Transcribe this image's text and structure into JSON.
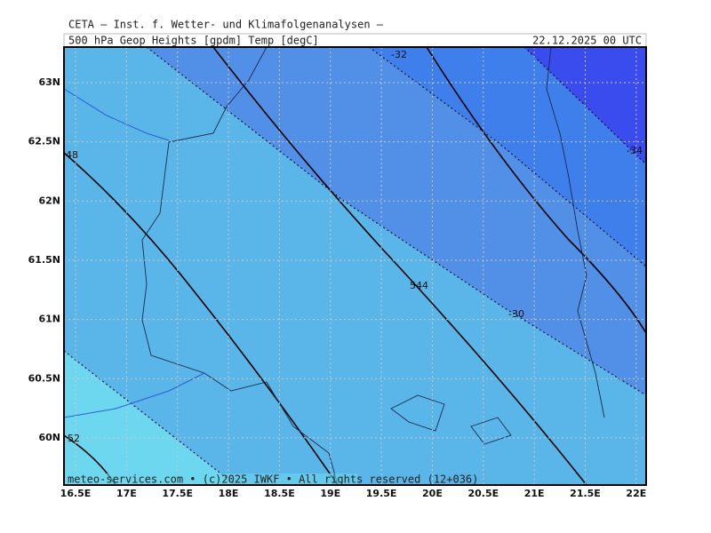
{
  "header": {
    "title": "CETA — Inst. f. Wetter- und Klimafolgenanalysen —",
    "subtitle": "500_hPa_Geop_Heights_[gpdm]_Temp_[degC]",
    "valid_time": "22.12.2025 00 UTC"
  },
  "map": {
    "lat_ticks": [
      {
        "value": 63,
        "label": "63N"
      },
      {
        "value": 62.5,
        "label": "62.5N"
      },
      {
        "value": 62,
        "label": "62N"
      },
      {
        "value": 61.5,
        "label": "61.5N"
      },
      {
        "value": 61,
        "label": "61N"
      },
      {
        "value": 60.5,
        "label": "60.5N"
      },
      {
        "value": 60,
        "label": "60N"
      }
    ],
    "lon_ticks": [
      {
        "value": 16.5,
        "label": "16.5E"
      },
      {
        "value": 17,
        "label": "17E"
      },
      {
        "value": 17.5,
        "label": "17.5E"
      },
      {
        "value": 18,
        "label": "18E"
      },
      {
        "value": 18.5,
        "label": "18.5E"
      },
      {
        "value": 19,
        "label": "19E"
      },
      {
        "value": 19.5,
        "label": "19.5E"
      },
      {
        "value": 20,
        "label": "20E"
      },
      {
        "value": 20.5,
        "label": "20.5E"
      },
      {
        "value": 21,
        "label": "21E"
      },
      {
        "value": 21.5,
        "label": "21.5E"
      },
      {
        "value": 22,
        "label": "22E"
      }
    ],
    "contour_labels": [
      "-32",
      "-34",
      "-30",
      "544",
      "48",
      "52"
    ]
  },
  "footer": "meteo-services.com • (c)2025 IWKF • All rights reserved (12+036)"
}
